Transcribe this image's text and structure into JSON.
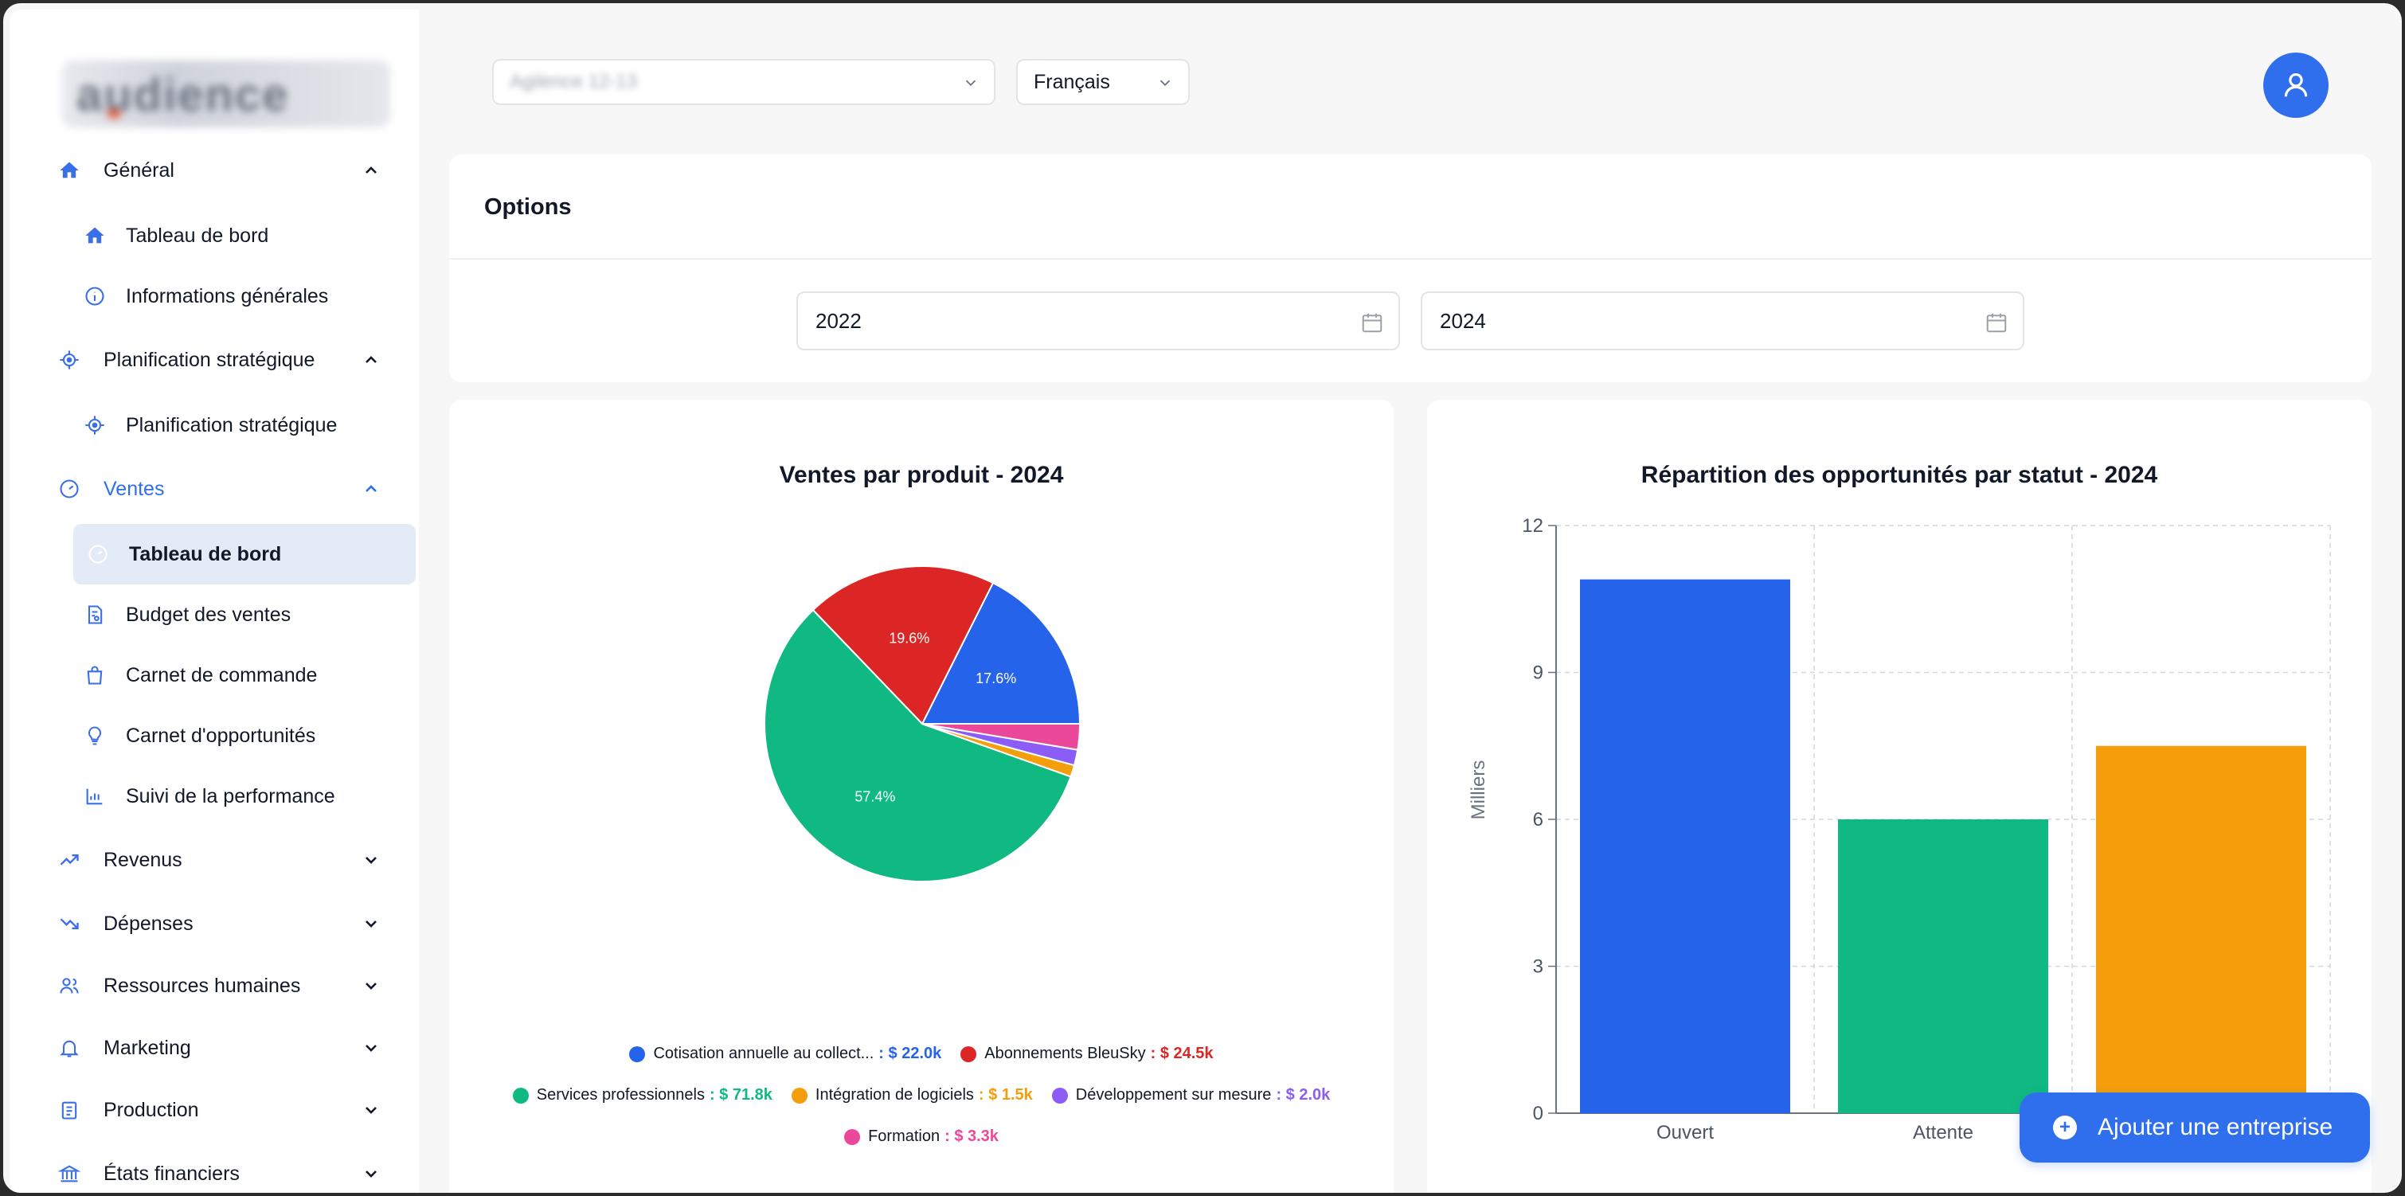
{
  "brand": {
    "logo_text": "audience"
  },
  "topbar": {
    "company_select": "Agilence 12-13",
    "language_select": "Français"
  },
  "sidebar": {
    "general": {
      "label": "Général",
      "items": [
        "Tableau de bord",
        "Informations générales"
      ]
    },
    "strategic": {
      "label": "Planification stratégique",
      "items": [
        "Planification stratégique"
      ]
    },
    "sales": {
      "label": "Ventes",
      "items": [
        "Tableau de bord",
        "Budget des ventes",
        "Carnet de commande",
        "Carnet d'opportunités",
        "Suivi de la performance"
      ]
    },
    "sections": [
      "Revenus",
      "Dépenses",
      "Ressources humaines",
      "Marketing",
      "Production",
      "États financiers"
    ]
  },
  "options": {
    "title": "Options",
    "start_year": "2022",
    "end_year": "2024"
  },
  "colors": {
    "accent": "#2f6fed",
    "blue": "#2563eb",
    "red": "#dc2626",
    "green": "#10b981",
    "orange": "#f59e0b",
    "purple": "#8b5cf6",
    "pink": "#ec4899"
  },
  "chart_data": [
    {
      "type": "pie",
      "title": "Ventes par produit - 2024",
      "slices": [
        {
          "label": "Cotisation annuelle au collect...",
          "value": 22.0,
          "value_label": "$ 22.0k",
          "percent_label": "17.6%",
          "color": "#2563eb"
        },
        {
          "label": "Abonnements BleuSky",
          "value": 24.5,
          "value_label": "$ 24.5k",
          "percent_label": "19.6%",
          "color": "#dc2626"
        },
        {
          "label": "Services professionnels",
          "value": 71.8,
          "value_label": "$ 71.8k",
          "percent_label": "57.4%",
          "color": "#10b981"
        },
        {
          "label": "Intégration de logiciels",
          "value": 1.5,
          "value_label": "$ 1.5k",
          "percent_label": "",
          "color": "#f59e0b"
        },
        {
          "label": "Développement sur mesure",
          "value": 2.0,
          "value_label": "$ 2.0k",
          "percent_label": "",
          "color": "#8b5cf6"
        },
        {
          "label": "Formation",
          "value": 3.3,
          "value_label": "$ 3.3k",
          "percent_label": "",
          "color": "#ec4899"
        }
      ]
    },
    {
      "type": "bar",
      "title": "Répartition des opportunités par statut - 2024",
      "ylabel": "Milliers",
      "categories": [
        "Ouvert",
        "Attente",
        ""
      ],
      "values": [
        10.9,
        6.0,
        7.5
      ],
      "colors": [
        "#2563eb",
        "#10b981",
        "#f59e0b"
      ],
      "yticks": [
        0,
        3,
        6,
        9,
        12
      ],
      "ylim": [
        0,
        12
      ],
      "grid": true
    }
  ],
  "add_button": {
    "label": "Ajouter une entreprise"
  }
}
